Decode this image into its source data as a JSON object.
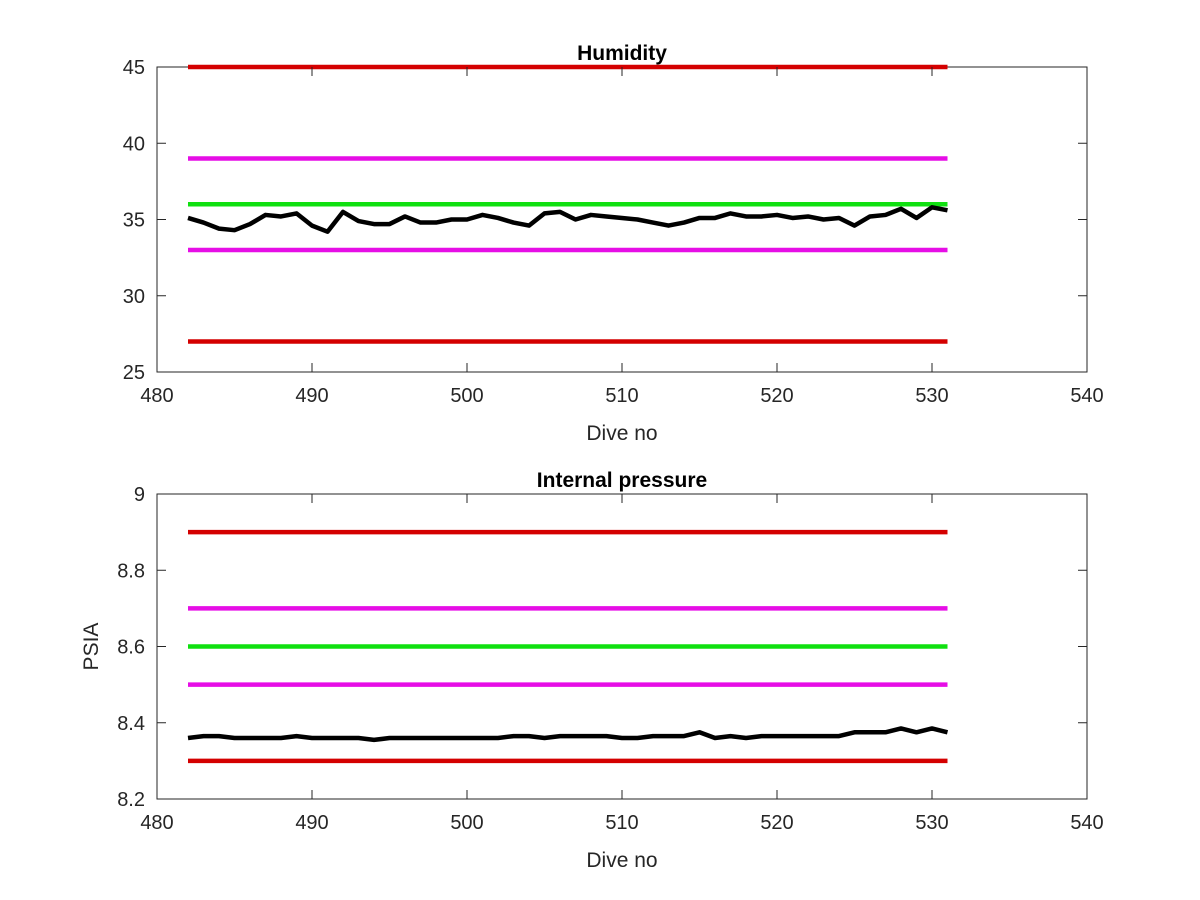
{
  "chart_data": [
    {
      "type": "line",
      "title": "Humidity",
      "xlabel": "Dive no",
      "ylabel": "",
      "xlim": [
        480,
        540
      ],
      "ylim": [
        25,
        45
      ],
      "xticks": [
        480,
        490,
        500,
        510,
        520,
        530,
        540
      ],
      "yticks": [
        25,
        30,
        35,
        40,
        45
      ],
      "xtick_labels": [
        "480",
        "490",
        "500",
        "510",
        "520",
        "530",
        "540"
      ],
      "ytick_labels": [
        "25",
        "30",
        "35",
        "40",
        "45"
      ],
      "grid": false,
      "series": [
        {
          "color": "#d40000",
          "x": [
            482,
            531
          ],
          "y": [
            45,
            45
          ]
        },
        {
          "color": "#e60ee6",
          "x": [
            482,
            531
          ],
          "y": [
            39,
            39
          ]
        },
        {
          "color": "#10e010",
          "x": [
            482,
            531
          ],
          "y": [
            36,
            36
          ]
        },
        {
          "color": "#e60ee6",
          "x": [
            482,
            531
          ],
          "y": [
            33,
            33
          ]
        },
        {
          "color": "#d40000",
          "x": [
            482,
            531
          ],
          "y": [
            27,
            27
          ]
        },
        {
          "color": "#000000",
          "x": [
            482,
            483,
            484,
            485,
            486,
            487,
            488,
            489,
            490,
            491,
            492,
            493,
            494,
            495,
            496,
            497,
            498,
            499,
            500,
            501,
            502,
            503,
            504,
            505,
            506,
            507,
            508,
            509,
            510,
            511,
            512,
            513,
            514,
            515,
            516,
            517,
            518,
            519,
            520,
            521,
            522,
            523,
            524,
            525,
            526,
            527,
            528,
            529,
            530,
            531
          ],
          "y": [
            35.1,
            34.8,
            34.4,
            34.3,
            34.7,
            35.3,
            35.2,
            35.4,
            34.6,
            34.2,
            35.5,
            34.9,
            34.7,
            34.7,
            35.2,
            34.8,
            34.8,
            35.0,
            35.0,
            35.3,
            35.1,
            34.8,
            34.6,
            35.4,
            35.5,
            35.0,
            35.3,
            35.2,
            35.1,
            35.0,
            34.8,
            34.6,
            34.8,
            35.1,
            35.1,
            35.4,
            35.2,
            35.2,
            35.3,
            35.1,
            35.2,
            35.0,
            35.1,
            34.6,
            35.2,
            35.3,
            35.7,
            35.1,
            35.8,
            35.6
          ]
        }
      ]
    },
    {
      "type": "line",
      "title": "Internal pressure",
      "xlabel": "Dive no",
      "ylabel": "PSIA",
      "xlim": [
        480,
        540
      ],
      "ylim": [
        8.2,
        9
      ],
      "xticks": [
        480,
        490,
        500,
        510,
        520,
        530,
        540
      ],
      "yticks": [
        8.2,
        8.4,
        8.6,
        8.8,
        9
      ],
      "xtick_labels": [
        "480",
        "490",
        "500",
        "510",
        "520",
        "530",
        "540"
      ],
      "ytick_labels": [
        "8.2",
        "8.4",
        "8.6",
        "8.8",
        "9"
      ],
      "grid": false,
      "series": [
        {
          "color": "#d40000",
          "x": [
            482,
            531
          ],
          "y": [
            8.9,
            8.9
          ]
        },
        {
          "color": "#e60ee6",
          "x": [
            482,
            531
          ],
          "y": [
            8.7,
            8.7
          ]
        },
        {
          "color": "#10e010",
          "x": [
            482,
            531
          ],
          "y": [
            8.6,
            8.6
          ]
        },
        {
          "color": "#e60ee6",
          "x": [
            482,
            531
          ],
          "y": [
            8.5,
            8.5
          ]
        },
        {
          "color": "#d40000",
          "x": [
            482,
            531
          ],
          "y": [
            8.3,
            8.3
          ]
        },
        {
          "color": "#000000",
          "x": [
            482,
            483,
            484,
            485,
            486,
            487,
            488,
            489,
            490,
            491,
            492,
            493,
            494,
            495,
            496,
            497,
            498,
            499,
            500,
            501,
            502,
            503,
            504,
            505,
            506,
            507,
            508,
            509,
            510,
            511,
            512,
            513,
            514,
            515,
            516,
            517,
            518,
            519,
            520,
            521,
            522,
            523,
            524,
            525,
            526,
            527,
            528,
            529,
            530,
            531
          ],
          "y": [
            8.36,
            8.365,
            8.365,
            8.36,
            8.36,
            8.36,
            8.36,
            8.365,
            8.36,
            8.36,
            8.36,
            8.36,
            8.355,
            8.36,
            8.36,
            8.36,
            8.36,
            8.36,
            8.36,
            8.36,
            8.36,
            8.365,
            8.365,
            8.36,
            8.365,
            8.365,
            8.365,
            8.365,
            8.36,
            8.36,
            8.365,
            8.365,
            8.365,
            8.375,
            8.36,
            8.365,
            8.36,
            8.365,
            8.365,
            8.365,
            8.365,
            8.365,
            8.365,
            8.375,
            8.375,
            8.375,
            8.385,
            8.375,
            8.385,
            8.375
          ]
        }
      ]
    }
  ]
}
